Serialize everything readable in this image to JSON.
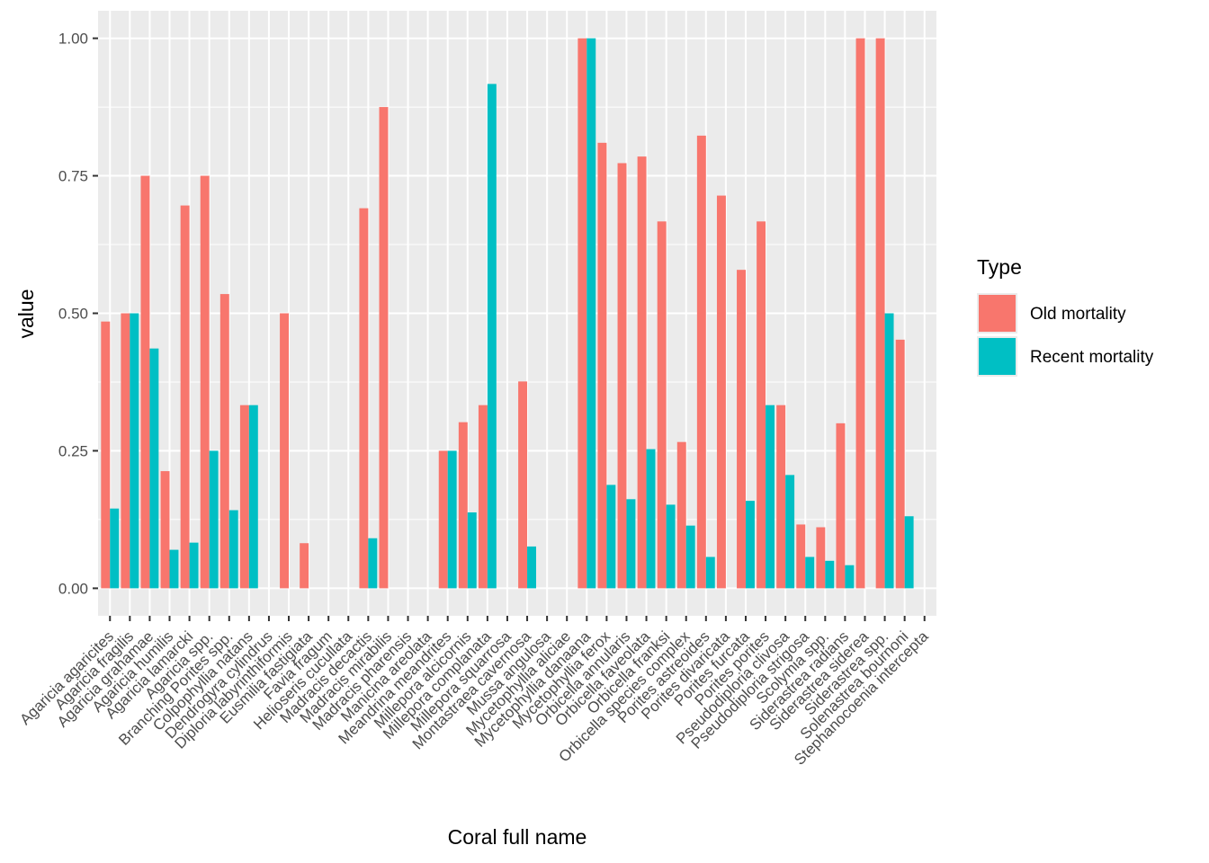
{
  "chart_data": {
    "type": "bar",
    "xlabel": "Coral full name",
    "ylabel": "value",
    "ylim": [
      -0.05,
      1.05
    ],
    "yticks": [
      0.0,
      0.25,
      0.5,
      0.75,
      1.0
    ],
    "ytick_labels": [
      "0.00",
      "0.25",
      "0.50",
      "0.75",
      "1.00"
    ],
    "grid": true,
    "legend": {
      "title": "Type",
      "position": "right"
    },
    "categories": [
      "Agaricia agaricites",
      "Agaricia fragilis",
      "Agaricia grahamae",
      "Agaricia humilis",
      "Agaricia lamarcki",
      "Agaricia spp.",
      "Branching Porites spp.",
      "Colpophyllia natans",
      "Dendrogyra cylindrus",
      "Diploria labyrinthiformis",
      "Eusmilia fastigiata",
      "Favia fragum",
      "Helioseris cucullata",
      "Madracis decactis",
      "Madracis mirabilis",
      "Madracis pharensis",
      "Manicina areolata",
      "Meandrina meandrites",
      "Millepora alcicornis",
      "Millepora complanata",
      "Millepora squarrosa",
      "Montastraea cavernosa",
      "Mussa angulosa",
      "Mycetophyllia aliciae",
      "Mycetophyllia danaana",
      "Mycetophyllia ferox",
      "Orbicella annularis",
      "Orbicella faveolata",
      "Orbicella franksi",
      "Orbicella species complex",
      "Porites astreoides",
      "Porites divaricata",
      "Porites furcata",
      "Porites porites",
      "Pseudodiploria clivosa",
      "Pseudodiploria strigosa",
      "Scolymia spp.",
      "Siderastrea radians",
      "Siderastrea siderea",
      "Siderastrea spp.",
      "Solenastrea bournoni",
      "Stephanocoenia intercepta"
    ],
    "series": [
      {
        "name": "Old mortality",
        "color": "#F8766D",
        "values": [
          0.485,
          0.5,
          0.75,
          0.213,
          0.696,
          0.75,
          0.535,
          0.333,
          0.0,
          0.5,
          0.082,
          0.0,
          0.0,
          0.691,
          0.875,
          0.0,
          0.0,
          0.25,
          0.302,
          0.333,
          0.0,
          0.376,
          0.0,
          0.0,
          1.0,
          0.81,
          0.773,
          0.785,
          0.667,
          0.266,
          0.823,
          0.714,
          0.579,
          0.667,
          0.333,
          0.116,
          0.111,
          0.3,
          1.0,
          1.0,
          0.452,
          0.0
        ]
      },
      {
        "name": "Recent mortality",
        "color": "#00BFC4",
        "values": [
          0.145,
          0.5,
          0.436,
          0.07,
          0.083,
          0.25,
          0.142,
          0.333,
          0.0,
          0.0,
          0.0,
          0.0,
          0.0,
          0.091,
          0.0,
          0.0,
          0.0,
          0.25,
          0.138,
          0.917,
          0.0,
          0.076,
          0.0,
          0.0,
          1.0,
          0.188,
          0.162,
          0.253,
          0.152,
          0.114,
          0.057,
          0.0,
          0.159,
          0.333,
          0.206,
          0.057,
          0.05,
          0.042,
          0.0,
          0.5,
          0.131,
          0.0
        ]
      }
    ]
  }
}
